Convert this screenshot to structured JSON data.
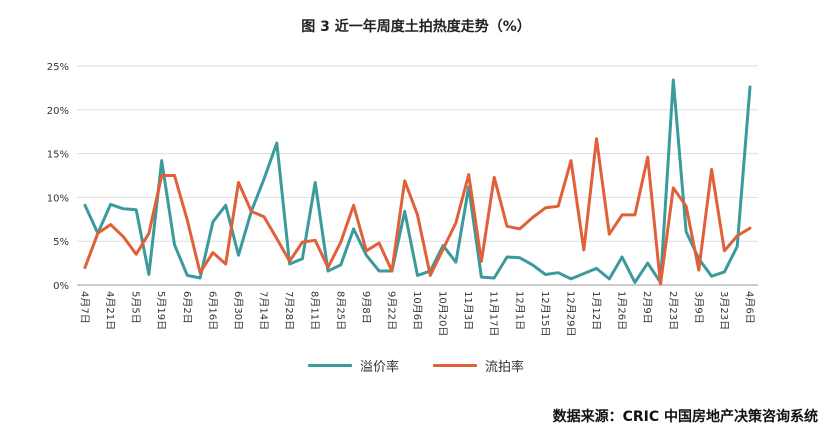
{
  "page": {
    "title": "图 3 近一年周度土拍热度走势（%）",
    "source": "数据来源：CRIC 中国房地产决策咨询系统"
  },
  "chart_data": {
    "type": "line",
    "title": "图 3 近一年周度土拍热度走势（%）",
    "xlabel": "",
    "ylabel": "",
    "ylim": [
      0,
      25
    ],
    "yticks": [
      "0%",
      "5%",
      "10%",
      "15%",
      "20%",
      "25%"
    ],
    "legend_position": "bottom",
    "grid": true,
    "x_labels": [
      "4月7日",
      "4月21日",
      "5月5日",
      "5月19日",
      "6月2日",
      "6月16日",
      "6月30日",
      "7月14日",
      "7月28日",
      "8月11日",
      "8月25日",
      "9月8日",
      "9月22日",
      "10月6日",
      "10月20日",
      "11月3日",
      "11月17日",
      "12月1日",
      "12月15日",
      "12月29日",
      "1月12日",
      "1月26日",
      "2月9日",
      "2月23日",
      "3月9日",
      "3月23日",
      "4月6日"
    ],
    "series": [
      {
        "name": "溢价率",
        "color": "#3a9a9c",
        "values": [
          9.1,
          5.9,
          9.2,
          8.7,
          8.6,
          1.2,
          14.2,
          4.6,
          1.1,
          0.8,
          7.2,
          9.1,
          3.4,
          8.4,
          12.1,
          16.2,
          2.4,
          3.0,
          11.7,
          1.6,
          2.3,
          6.4,
          3.4,
          1.6,
          1.6,
          8.4,
          1.1,
          1.6,
          4.5,
          2.6,
          11.2,
          0.9,
          0.8,
          3.2,
          3.1,
          2.3,
          1.2,
          1.4,
          0.7,
          1.3,
          1.9,
          0.7,
          3.2,
          0.3,
          2.5,
          0.3,
          23.4,
          6.1,
          3.0,
          1.0,
          1.5,
          4.4,
          22.6
        ]
      },
      {
        "name": "流拍率",
        "color": "#e0603a",
        "values": [
          2.0,
          5.9,
          6.9,
          5.5,
          3.5,
          5.9,
          12.5,
          12.5,
          7.4,
          1.4,
          3.7,
          2.4,
          11.7,
          8.4,
          7.8,
          5.3,
          2.7,
          4.9,
          5.1,
          2.0,
          4.9,
          9.1,
          3.9,
          4.8,
          1.6,
          11.9,
          8.0,
          1.1,
          4.1,
          7.1,
          12.6,
          2.7,
          12.3,
          6.7,
          6.4,
          7.7,
          8.8,
          9.0,
          14.2,
          4.0,
          16.7,
          5.8,
          8.0,
          8.0,
          14.6,
          0.1,
          11.1,
          9.0,
          1.7,
          13.2,
          3.9,
          5.6,
          6.5
        ]
      }
    ]
  }
}
